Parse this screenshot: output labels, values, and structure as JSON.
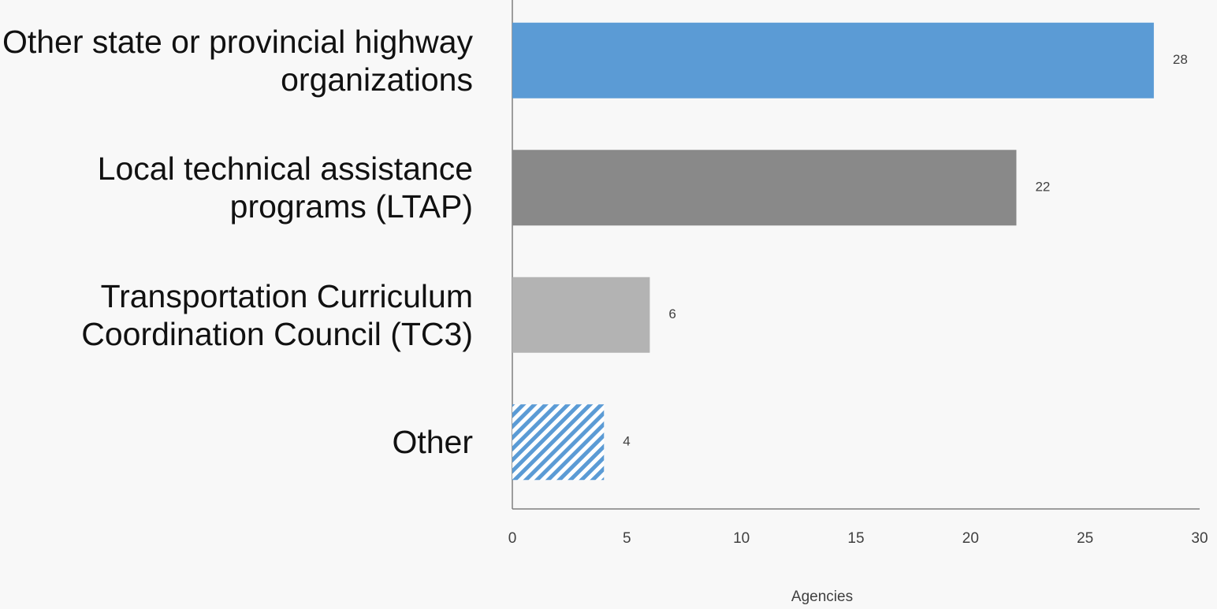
{
  "chart_data": {
    "type": "hbar",
    "categories": [
      "Other state or provincial highway organizations",
      "Local technical assistance programs (LTAP)",
      "Transportation Curriculum Coordination Council (TC3)",
      "Other"
    ],
    "values": [
      28,
      22,
      6,
      4
    ],
    "colors": [
      "#5b9bd5",
      "#898989",
      "#b3b3b3",
      "#5b9bd5"
    ],
    "hatch": [
      false,
      false,
      false,
      true
    ],
    "xlabel": "Agencies",
    "xlim": [
      0,
      30
    ],
    "xticks": [
      0,
      5,
      10,
      15,
      20,
      25,
      30
    ],
    "grid": false
  }
}
